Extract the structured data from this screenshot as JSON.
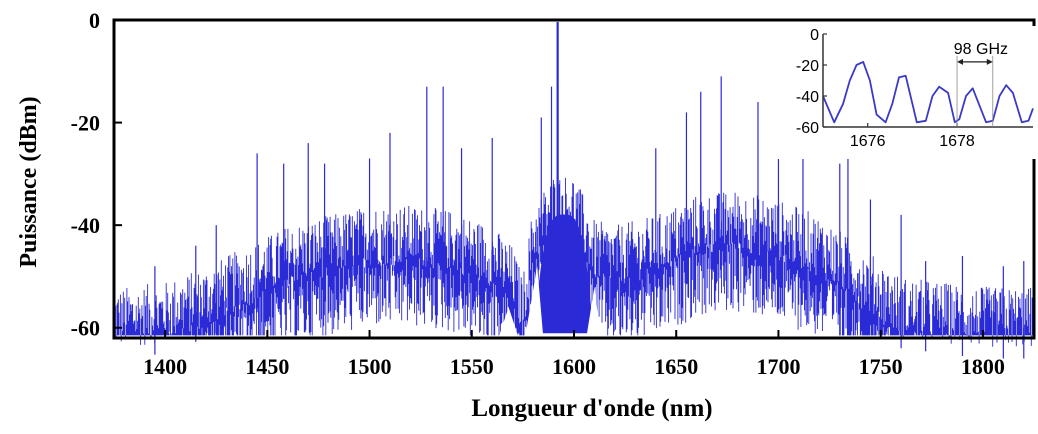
{
  "chart_data": [
    {
      "type": "line",
      "title": "",
      "xlabel": "Longueur d'onde (nm)",
      "ylabel": "Puissance (dBm)",
      "xlim": [
        1375,
        1825
      ],
      "ylim": [
        -62,
        0
      ],
      "xticks": [
        1400,
        1450,
        1500,
        1550,
        1600,
        1650,
        1700,
        1750,
        1800
      ],
      "yticks": [
        0,
        -20,
        -40,
        -60
      ],
      "grid": false,
      "color": "#2a2ad6",
      "pump_line": {
        "x": 1592,
        "y": 0
      },
      "series": [
        {
          "name": "",
          "x": [
            1380,
            1400,
            1420,
            1440,
            1460,
            1480,
            1500,
            1520,
            1540,
            1560,
            1570,
            1575,
            1580,
            1590,
            1600,
            1610,
            1620,
            1640,
            1660,
            1680,
            1700,
            1720,
            1740,
            1760,
            1780,
            1800,
            1820
          ],
          "y": [
            -60,
            -59,
            -56,
            -52,
            -48,
            -46,
            -44,
            -44,
            -45,
            -48,
            -52,
            -58,
            -44,
            -38,
            -38,
            -47,
            -48,
            -46,
            -42,
            -41,
            -43,
            -46,
            -52,
            -58,
            -59,
            -60,
            -60
          ]
        }
      ],
      "peaks": [
        {
          "x": 1395,
          "y": -48
        },
        {
          "x": 1415,
          "y": -44
        },
        {
          "x": 1425,
          "y": -40
        },
        {
          "x": 1445,
          "y": -26
        },
        {
          "x": 1458,
          "y": -28
        },
        {
          "x": 1470,
          "y": -24
        },
        {
          "x": 1478,
          "y": -28
        },
        {
          "x": 1500,
          "y": -27
        },
        {
          "x": 1510,
          "y": -22
        },
        {
          "x": 1528,
          "y": -13
        },
        {
          "x": 1536,
          "y": -13
        },
        {
          "x": 1545,
          "y": -25
        },
        {
          "x": 1560,
          "y": -23
        },
        {
          "x": 1584,
          "y": -19
        },
        {
          "x": 1589,
          "y": -13
        },
        {
          "x": 1640,
          "y": -25
        },
        {
          "x": 1655,
          "y": -18
        },
        {
          "x": 1662,
          "y": -14
        },
        {
          "x": 1672,
          "y": -11
        },
        {
          "x": 1690,
          "y": -16
        },
        {
          "x": 1700,
          "y": -24
        },
        {
          "x": 1712,
          "y": -21
        },
        {
          "x": 1730,
          "y": -28
        },
        {
          "x": 1734,
          "y": -16
        },
        {
          "x": 1745,
          "y": -35
        },
        {
          "x": 1760,
          "y": -38
        },
        {
          "x": 1772,
          "y": -47
        },
        {
          "x": 1790,
          "y": -46
        },
        {
          "x": 1810,
          "y": -48
        },
        {
          "x": 1820,
          "y": -47
        }
      ]
    },
    {
      "type": "line",
      "title": "",
      "xlabel": "",
      "ylabel": "",
      "xlim": [
        1675,
        1679.7
      ],
      "ylim": [
        -60,
        0
      ],
      "xticks": [
        1676,
        1678
      ],
      "yticks": [
        0,
        -20,
        -40,
        -60
      ],
      "annotation": {
        "text": "98 GHz",
        "x1": 1678.0,
        "x2": 1678.8,
        "y": -18
      },
      "series": [
        {
          "name": "",
          "x": [
            1675.0,
            1675.25,
            1675.45,
            1675.6,
            1675.75,
            1675.9,
            1676.05,
            1676.2,
            1676.4,
            1676.55,
            1676.7,
            1676.85,
            1677.0,
            1677.1,
            1677.3,
            1677.45,
            1677.6,
            1677.8,
            1677.95,
            1678.05,
            1678.2,
            1678.35,
            1678.5,
            1678.65,
            1678.8,
            1678.95,
            1679.1,
            1679.25,
            1679.45,
            1679.6,
            1679.7
          ],
          "y": [
            -40,
            -57,
            -45,
            -30,
            -20,
            -18,
            -30,
            -52,
            -57,
            -45,
            -28,
            -27,
            -45,
            -57,
            -56,
            -40,
            -34,
            -38,
            -57,
            -55,
            -40,
            -35,
            -46,
            -57,
            -56,
            -40,
            -33,
            -38,
            -57,
            -56,
            -48
          ]
        }
      ]
    }
  ]
}
